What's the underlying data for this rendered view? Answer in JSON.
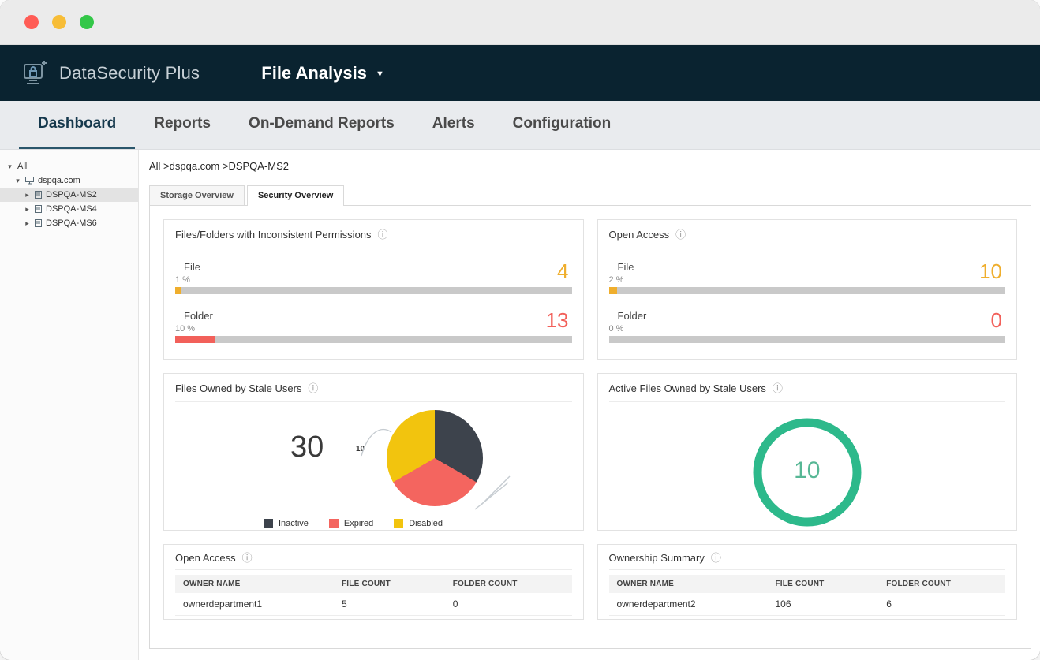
{
  "window": {
    "traffic_lights": [
      {
        "name": "close",
        "color": "#ff5c55"
      },
      {
        "name": "minimize",
        "color": "#f7bd37"
      },
      {
        "name": "zoom",
        "color": "#33c748"
      }
    ]
  },
  "icons": {
    "info": "ⓘ",
    "module_caret": "▼",
    "expanded": "▾",
    "collapsed": "▸"
  },
  "header": {
    "brand": "DataSecurity Plus",
    "module": "File Analysis"
  },
  "nav": {
    "items": [
      {
        "label": "Dashboard",
        "active": true
      },
      {
        "label": "Reports",
        "active": false
      },
      {
        "label": "On-Demand Reports",
        "active": false
      },
      {
        "label": "Alerts",
        "active": false
      },
      {
        "label": "Configuration",
        "active": false
      }
    ]
  },
  "sidebar": {
    "root_label": "All",
    "domain_label": "dspqa.com",
    "servers": [
      {
        "label": "DSPQA-MS2",
        "selected": true
      },
      {
        "label": "DSPQA-MS4",
        "selected": false
      },
      {
        "label": "DSPQA-MS6",
        "selected": false
      }
    ]
  },
  "main": {
    "breadcrumb": "All >dspqa.com >DSPQA-MS2",
    "tabs": [
      {
        "label": "Storage Overview",
        "active": false
      },
      {
        "label": "Security Overview",
        "active": true
      }
    ]
  },
  "cards": {
    "inconsistent_permissions": {
      "title": "Files/Folders with Inconsistent Permissions",
      "rows": [
        {
          "label": "File",
          "percent_label": "1 %",
          "percent": 1,
          "value": "4",
          "color": "#efae2d"
        },
        {
          "label": "Folder",
          "percent_label": "10 %",
          "percent": 10,
          "value": "13",
          "color": "#f2605a"
        }
      ]
    },
    "open_access": {
      "title": "Open Access",
      "rows": [
        {
          "label": "File",
          "percent_label": "2 %",
          "percent": 2,
          "value": "10",
          "color": "#efae2d"
        },
        {
          "label": "Folder",
          "percent_label": "0 %",
          "percent": 0,
          "value": "0",
          "color": "#f2605a"
        }
      ]
    },
    "stale_users": {
      "title": "Files Owned by Stale Users",
      "total": "30",
      "callout": "10",
      "legend": [
        {
          "label": "Inactive",
          "color": "#3d434c"
        },
        {
          "label": "Expired",
          "color": "#f4655f"
        },
        {
          "label": "Disabled",
          "color": "#f2c40e"
        }
      ]
    },
    "active_stale": {
      "title": "Active Files Owned by Stale Users",
      "value": "10",
      "ring_color": "#2db98b",
      "value_color": "#57b795"
    },
    "open_access_table": {
      "title": "Open Access",
      "headers": [
        "OWNER NAME",
        "FILE COUNT",
        "FOLDER COUNT"
      ],
      "rows": [
        [
          "ownerdepartment1",
          "5",
          "0"
        ]
      ]
    },
    "ownership_summary": {
      "title": "Ownership Summary",
      "headers": [
        "OWNER NAME",
        "FILE COUNT",
        "FOLDER COUNT"
      ],
      "rows": [
        [
          "ownerdepartment2",
          "106",
          "6"
        ]
      ]
    }
  },
  "chart_data": [
    {
      "type": "pie",
      "title": "Files Owned by Stale Users",
      "categories": [
        "Inactive",
        "Expired",
        "Disabled"
      ],
      "values": [
        10,
        10,
        10
      ],
      "total": 30,
      "colors": [
        "#3d434c",
        "#f4655f",
        "#f2c40e"
      ],
      "legend_position": "bottom"
    },
    {
      "type": "donut",
      "title": "Active Files Owned by Stale Users",
      "values": [
        10
      ],
      "categories": [
        "Active files owned by stale users"
      ],
      "colors": [
        "#2db98b"
      ]
    },
    {
      "type": "bar",
      "title": "Files/Folders with Inconsistent Permissions",
      "categories": [
        "File",
        "Folder"
      ],
      "values": [
        1,
        10
      ],
      "counts": [
        4,
        13
      ],
      "ylabel": "percent",
      "xlim": [
        0,
        100
      ]
    },
    {
      "type": "bar",
      "title": "Open Access",
      "categories": [
        "File",
        "Folder"
      ],
      "values": [
        2,
        0
      ],
      "counts": [
        10,
        0
      ],
      "ylabel": "percent",
      "xlim": [
        0,
        100
      ]
    }
  ]
}
